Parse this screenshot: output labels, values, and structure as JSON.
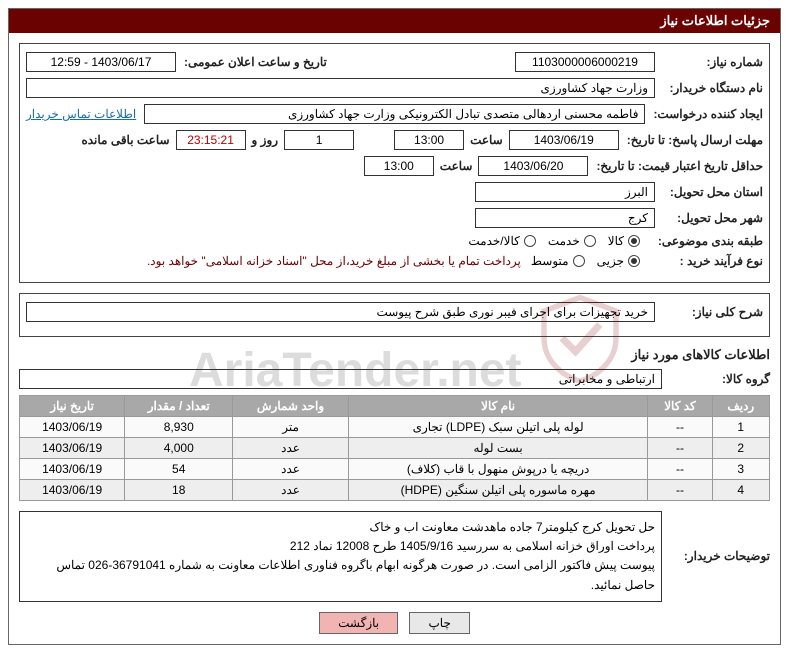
{
  "panel_title": "جزئیات اطلاعات نیاز",
  "fields": {
    "need_number_label": "شماره نیاز:",
    "need_number": "1103000006000219",
    "announce_label": "تاریخ و ساعت اعلان عمومی:",
    "announce_value": "1403/06/17 - 12:59",
    "buyer_org_label": "نام دستگاه خریدار:",
    "buyer_org": "وزارت جهاد کشاورزی",
    "requester_label": "ایجاد کننده درخواست:",
    "requester": "فاطمه محسنی اردهالی متصدی تبادل الکترونیکی وزارت جهاد کشاورزی",
    "contact_link": "اطلاعات تماس خریدار",
    "reply_deadline_label": "مهلت ارسال پاسخ: تا تاریخ:",
    "reply_date": "1403/06/19",
    "hour_label": "ساعت",
    "reply_hour": "13:00",
    "days_label": "روز و",
    "days_value": "1",
    "remain_label": "ساعت باقی مانده",
    "remain_time": "23:15:21",
    "price_validity_label": "حداقل تاریخ اعتبار قیمت: تا تاریخ:",
    "price_date": "1403/06/20",
    "price_hour": "13:00",
    "province_label": "استان محل تحویل:",
    "province": "البرز",
    "city_label": "شهر محل تحویل:",
    "city": "کرج",
    "cat_label": "طبقه بندی موضوعی:",
    "cat_goods": "کالا",
    "cat_service": "خدمت",
    "cat_both": "کالا/خدمت",
    "process_label": "نوع فرآیند خرید :",
    "proc_small": "جزیی",
    "proc_medium": "متوسط",
    "proc_note": "پرداخت تمام یا بخشی از مبلغ خرید،از محل \"اسناد خزانه اسلامی\" خواهد بود.",
    "general_desc_label": "شرح کلی نیاز:",
    "general_desc": "خرید تجهیزات برای اجرای فیبر نوری طبق شرح پیوست",
    "goods_info_title": "اطلاعات کالاهای مورد نیاز",
    "group_label": "گروه کالا:",
    "group_value": "ارتباطی و مخابراتی",
    "buyer_notes_label": "توضیحات خریدار:",
    "buyer_notes_l1": "حل تحویل کرج کیلومتر7 جاده ماهدشت معاونت اب و خاک",
    "buyer_notes_l2": "پرداخت اوراق خزانه اسلامی به سررسید 1405/9/16 طرح 12008 نماد 212",
    "buyer_notes_l3": "پیوست پیش فاکتور الزامی است. در صورت هرگونه ابهام باگروه فناوری اطلاعات معاونت به شماره 36791041-026 تماس حاصل نمائید.",
    "btn_print": "چاپ",
    "btn_back": "بازگشت"
  },
  "table": {
    "headers": {
      "row": "ردیف",
      "code": "کد کالا",
      "name": "نام کالا",
      "unit": "واحد شمارش",
      "qty": "تعداد / مقدار",
      "date": "تاریخ نیاز"
    },
    "rows": [
      {
        "n": "1",
        "code": "--",
        "name": "لوله پلی اتیلن سبک (LDPE) تجاری",
        "unit": "متر",
        "qty": "8,930",
        "date": "1403/06/19"
      },
      {
        "n": "2",
        "code": "--",
        "name": "بست لوله",
        "unit": "عدد",
        "qty": "4,000",
        "date": "1403/06/19"
      },
      {
        "n": "3",
        "code": "--",
        "name": "دریچه یا درپوش منهول با قاب (کلاف)",
        "unit": "عدد",
        "qty": "54",
        "date": "1403/06/19"
      },
      {
        "n": "4",
        "code": "--",
        "name": "مهره ماسوره پلی اتیلن سنگین (HDPE)",
        "unit": "عدد",
        "qty": "18",
        "date": "1403/06/19"
      }
    ]
  },
  "colors": {
    "header_bg": "#6b0202",
    "th_bg": "#a8a8a8",
    "btn_back_bg": "#f2b3b3"
  }
}
